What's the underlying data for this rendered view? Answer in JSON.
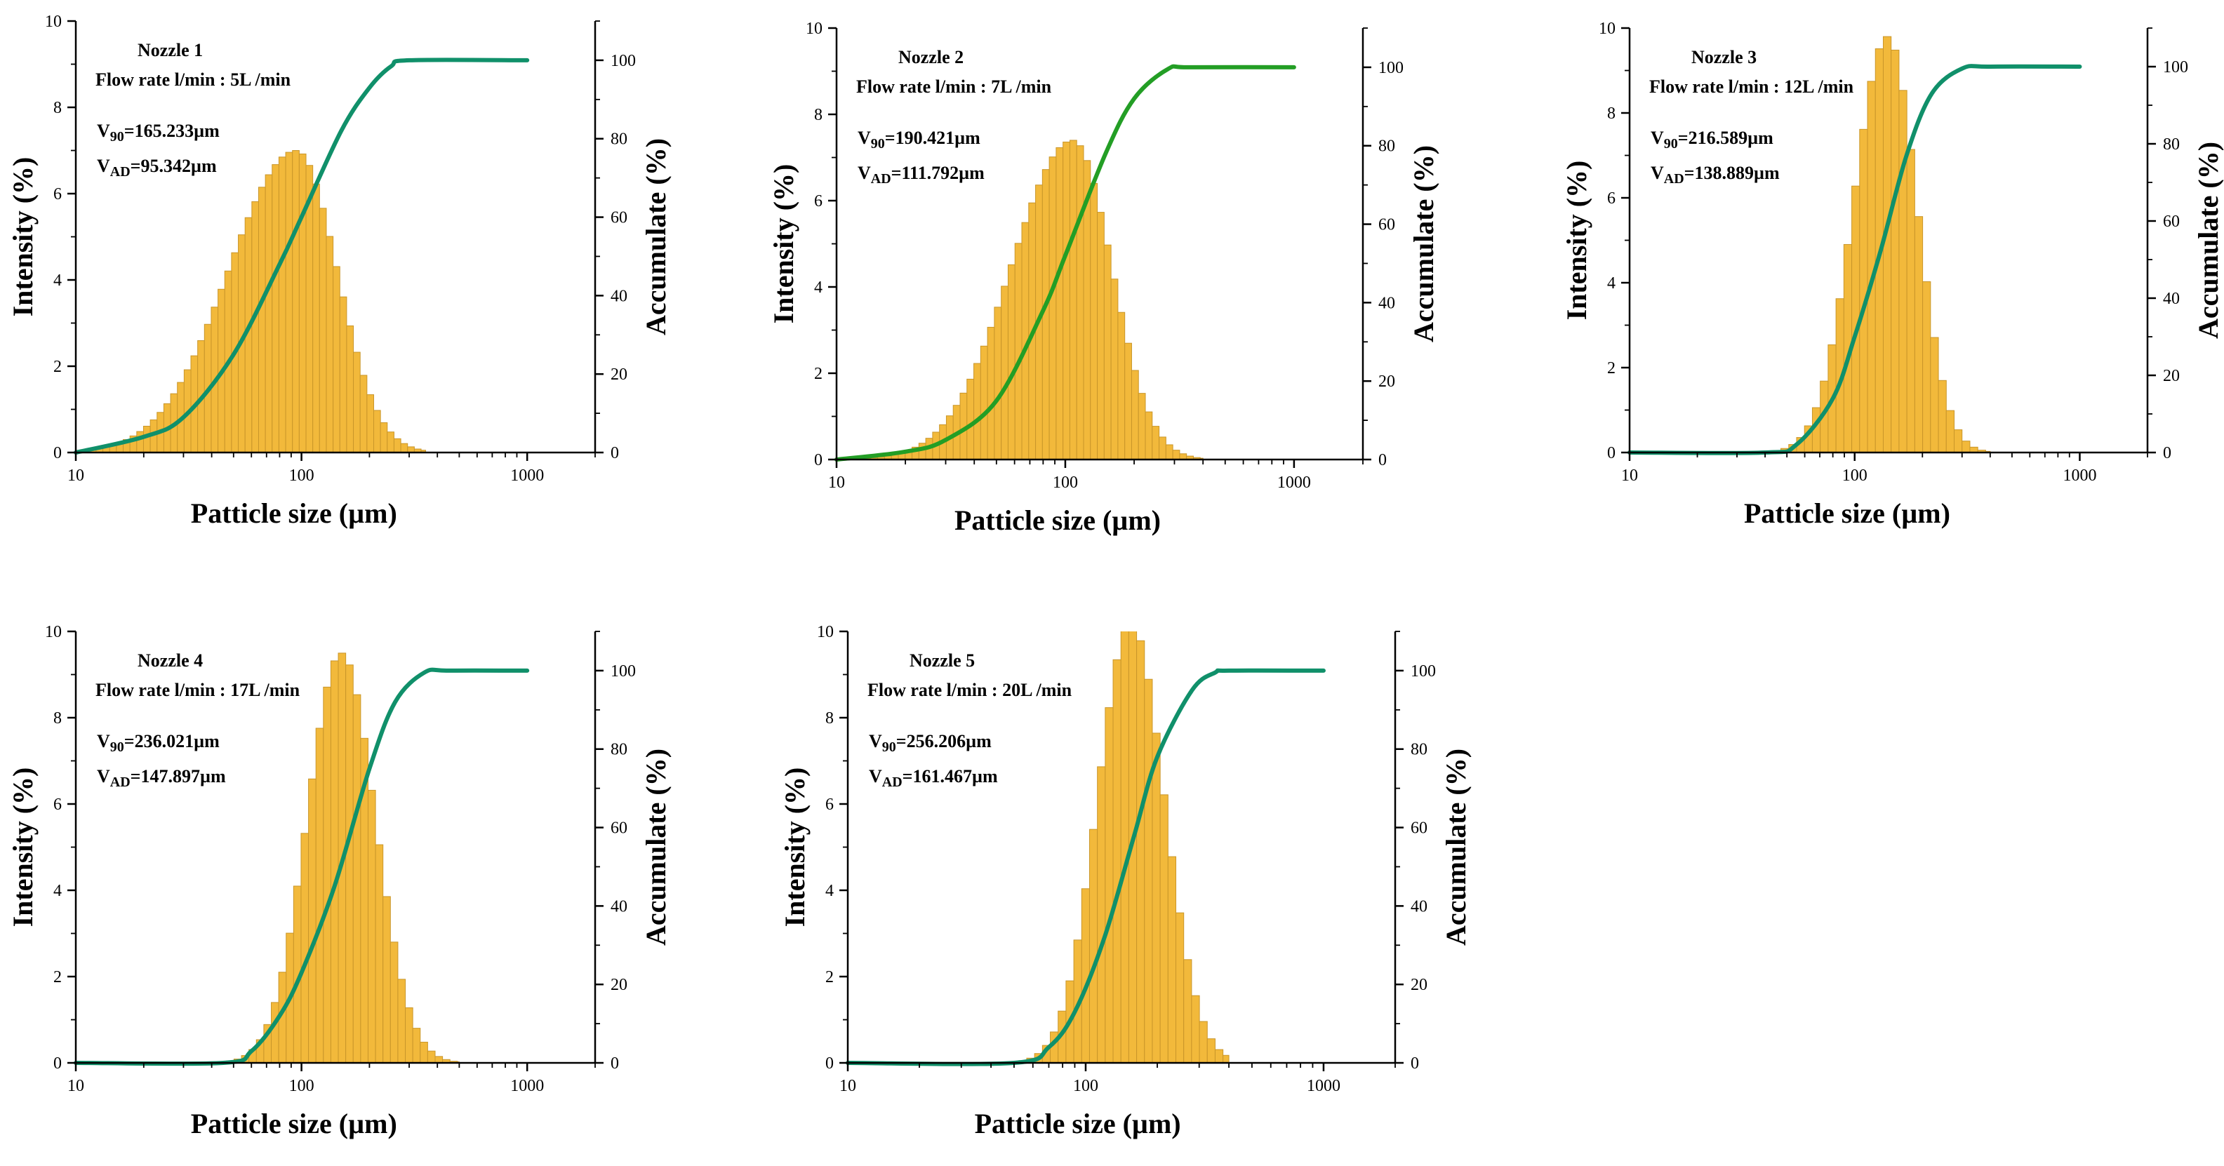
{
  "colors": {
    "bar_fill": "#F2B93B",
    "bar_edge": "#C9962A",
    "curve": "#10906A",
    "curve_alt": "#239E25"
  },
  "chart_data": [
    {
      "type": "bar",
      "panel": "Nozzle 1",
      "annotation": {
        "nozzle": "Nozzle 1",
        "flow_rate": "Flow rate l/min : 5L /min",
        "v90": {
          "base": "V",
          "sub": "90",
          "rest": "=165.233µm"
        },
        "vad": {
          "base": "V",
          "sub": "AD",
          "rest": "=95.342µm"
        }
      },
      "xlabel": "Patticle size (µm)",
      "ylabel": "Intensity (%)",
      "y2label": "Accumulate (%)",
      "xscale": "log",
      "xlim": [
        10,
        2000
      ],
      "ylim": [
        0,
        10
      ],
      "y2lim": [
        0,
        110
      ],
      "x_ticks": [
        "10",
        "100",
        "1000"
      ],
      "y_ticks": [
        "0",
        "2",
        "4",
        "6",
        "8",
        "10"
      ],
      "y2_ticks": [
        "0",
        "20",
        "40",
        "60",
        "80",
        "100"
      ],
      "curve_color": "#10906A",
      "bins": {
        "start": 10,
        "end": 355,
        "step_log10": 0.03
      },
      "peak": {
        "center": 95,
        "amplitude": 7.0,
        "left_width_log10": 0.3,
        "right_width_log10": 0.18
      },
      "series": [
        {
          "name": "Intensity",
          "kind": "histogram",
          "distribution": "skewed log-normal, peak near 95 µm at about 7.0 %, long left tail"
        },
        {
          "name": "Accumulate",
          "kind": "line",
          "points": [
            [
              10,
              0
            ],
            [
              20,
              4
            ],
            [
              30,
              9
            ],
            [
              50,
              25
            ],
            [
              80,
              48
            ],
            [
              100,
              60
            ],
            [
              150,
              82
            ],
            [
              200,
              93
            ],
            [
              250,
              98.5
            ],
            [
              300,
              100
            ],
            [
              1000,
              100
            ]
          ]
        }
      ]
    },
    {
      "type": "bar",
      "panel": "Nozzle 2",
      "annotation": {
        "nozzle": "Nozzle 2",
        "flow_rate": "Flow rate l/min : 7L /min",
        "v90": {
          "base": "V",
          "sub": "90",
          "rest": "=190.421µm"
        },
        "vad": {
          "base": "V",
          "sub": "AD",
          "rest": "=111.792µm"
        }
      },
      "xlabel": "Patticle size (µm)",
      "ylabel": "Intensity (%)",
      "y2label": "Accumulate (%)",
      "xscale": "log",
      "xlim": [
        10,
        2000
      ],
      "ylim": [
        0,
        10
      ],
      "y2lim": [
        0,
        110
      ],
      "x_ticks": [
        "10",
        "100",
        "1000"
      ],
      "y_ticks": [
        "0",
        "2",
        "4",
        "6",
        "8",
        "10"
      ],
      "y2_ticks": [
        "0",
        "20",
        "40",
        "60",
        "80",
        "100"
      ],
      "curve_color": "#239E25",
      "bins": {
        "start": 10,
        "end": 400,
        "step_log10": 0.03
      },
      "peak": {
        "center": 108,
        "amplitude": 7.4,
        "left_width_log10": 0.27,
        "right_width_log10": 0.17
      },
      "series": [
        {
          "name": "Intensity",
          "kind": "histogram",
          "distribution": "skewed log-normal, peak near 108 µm at about 7.4 %"
        },
        {
          "name": "Accumulate",
          "kind": "line",
          "points": [
            [
              10,
              0
            ],
            [
              20,
              2
            ],
            [
              30,
              5
            ],
            [
              50,
              15
            ],
            [
              80,
              38
            ],
            [
              100,
              52
            ],
            [
              150,
              78
            ],
            [
              200,
              92
            ],
            [
              280,
              99.5
            ],
            [
              350,
              100
            ],
            [
              1000,
              100
            ]
          ]
        }
      ]
    },
    {
      "type": "bar",
      "panel": "Nozzle 3",
      "annotation": {
        "nozzle": "Nozzle 3",
        "flow_rate": "Flow rate l/min : 12L /min",
        "v90": {
          "base": "V",
          "sub": "90",
          "rest": "=216.589µm"
        },
        "vad": {
          "base": "V",
          "sub": "AD",
          "rest": "=138.889µm"
        }
      },
      "xlabel": "Patticle size (µm)",
      "ylabel": "Intensity (%)",
      "y2label": "Accumulate (%)",
      "xscale": "log",
      "xlim": [
        10,
        2000
      ],
      "ylim": [
        0,
        10
      ],
      "y2lim": [
        0,
        110
      ],
      "x_ticks": [
        "10",
        "100",
        "1000"
      ],
      "y_ticks": [
        "0",
        "2",
        "4",
        "6",
        "8",
        "10"
      ],
      "y2_ticks": [
        "0",
        "20",
        "40",
        "60",
        "80",
        "100"
      ],
      "curve_color": "#10906A",
      "bins": {
        "start": 40,
        "end": 400,
        "step_log10": 0.035
      },
      "peak": {
        "center": 140,
        "amplitude": 9.8,
        "left_width_log10": 0.15,
        "right_width_log10": 0.13
      },
      "series": [
        {
          "name": "Intensity",
          "kind": "histogram",
          "distribution": "log-normal, peak near 140 µm at about 9.8 %"
        },
        {
          "name": "Accumulate",
          "kind": "line",
          "points": [
            [
              10,
              0
            ],
            [
              40,
              0
            ],
            [
              55,
              2
            ],
            [
              80,
              14
            ],
            [
              100,
              30
            ],
            [
              130,
              52
            ],
            [
              170,
              77
            ],
            [
              220,
              93
            ],
            [
              300,
              99.5
            ],
            [
              400,
              100
            ],
            [
              1000,
              100
            ]
          ]
        }
      ]
    },
    {
      "type": "bar",
      "panel": "Nozzle 4",
      "annotation": {
        "nozzle": "Nozzle 4",
        "flow_rate": "Flow rate l/min : 17L /min",
        "v90": {
          "base": "V",
          "sub": "90",
          "rest": "=236.021µm"
        },
        "vad": {
          "base": "V",
          "sub": "AD",
          "rest": "=147.897µm"
        }
      },
      "xlabel": "Patticle size (µm)",
      "ylabel": "Intensity (%)",
      "y2label": "Accumulate (%)",
      "xscale": "log",
      "xlim": [
        10,
        2000
      ],
      "ylim": [
        0,
        10
      ],
      "y2lim": [
        0,
        110
      ],
      "x_ticks": [
        "10",
        "100",
        "1000"
      ],
      "y_ticks": [
        "0",
        "2",
        "4",
        "6",
        "8",
        "10"
      ],
      "y2_ticks": [
        "0",
        "20",
        "40",
        "60",
        "80",
        "100"
      ],
      "curve_color": "#10906A",
      "bins": {
        "start": 40,
        "end": 500,
        "step_log10": 0.033
      },
      "peak": {
        "center": 150,
        "amplitude": 9.5,
        "left_width_log10": 0.15,
        "right_width_log10": 0.15
      },
      "series": [
        {
          "name": "Intensity",
          "kind": "histogram",
          "distribution": "log-normal, peak near 150 µm at about 9.5 %"
        },
        {
          "name": "Accumulate",
          "kind": "line",
          "points": [
            [
              10,
              0
            ],
            [
              45,
              0
            ],
            [
              60,
              3
            ],
            [
              80,
              12
            ],
            [
              100,
              23
            ],
            [
              140,
              45
            ],
            [
              200,
              75
            ],
            [
              260,
              92
            ],
            [
              350,
              99.5
            ],
            [
              450,
              100
            ],
            [
              1000,
              100
            ]
          ]
        }
      ]
    },
    {
      "type": "bar",
      "panel": "Nozzle 5",
      "annotation": {
        "nozzle": "Nozzle 5",
        "flow_rate": "Flow rate l/min : 20L /min",
        "v90": {
          "base": "V",
          "sub": "90",
          "rest": "=256.206µm"
        },
        "vad": {
          "base": "V",
          "sub": "AD",
          "rest": "=161.467µm"
        }
      },
      "xlabel": "Patticle size (µm)",
      "ylabel": "Intensity (%)",
      "y2label": "Accumulate (%)",
      "xscale": "log",
      "xlim": [
        10,
        2000
      ],
      "ylim": [
        0,
        10
      ],
      "y2lim": [
        0,
        110
      ],
      "x_ticks": [
        "10",
        "100",
        "1000"
      ],
      "y_ticks": [
        "0",
        "2",
        "4",
        "6",
        "8",
        "10"
      ],
      "y2_ticks": [
        "0",
        "20",
        "40",
        "60",
        "80",
        "100"
      ],
      "curve_color": "#10906A",
      "bins": {
        "start": 45,
        "end": 400,
        "step_log10": 0.033
      },
      "peak": {
        "center": 155,
        "amplitude": 10.2,
        "left_width_log10": 0.14,
        "right_width_log10": 0.14
      },
      "series": [
        {
          "name": "Intensity",
          "kind": "histogram",
          "distribution": "log-normal, peak near 155 µm (clipped at top of axis)"
        },
        {
          "name": "Accumulate",
          "kind": "line",
          "points": [
            [
              10,
              0
            ],
            [
              50,
              0
            ],
            [
              70,
              4
            ],
            [
              90,
              13
            ],
            [
              120,
              32
            ],
            [
              160,
              58
            ],
            [
              200,
              78
            ],
            [
              280,
              95
            ],
            [
              350,
              99.5
            ],
            [
              400,
              100
            ],
            [
              1000,
              100
            ]
          ]
        }
      ]
    }
  ]
}
